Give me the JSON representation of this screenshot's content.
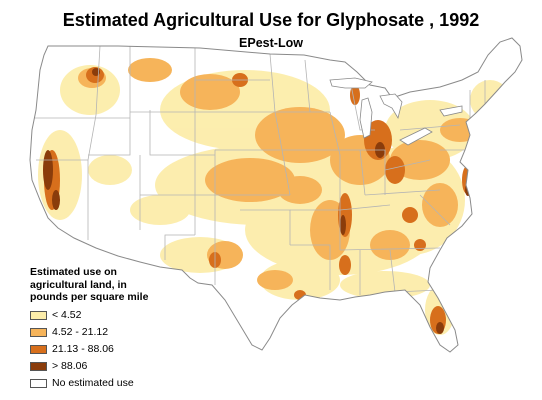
{
  "title": "Estimated Agricultural Use for Glyphosate , 1992",
  "subtitle": "EPest-Low",
  "legend": {
    "title_lines": [
      "Estimated use on",
      "agricultural land, in",
      "pounds per square mile"
    ],
    "items": [
      {
        "label": "< 4.52",
        "color": "#fcedaa"
      },
      {
        "label": "4.52 - 21.12",
        "color": "#f6b45a"
      },
      {
        "label": "21.13 - 88.06",
        "color": "#d76f1c"
      },
      {
        "label": "> 88.06",
        "color": "#8a3c0b"
      },
      {
        "label": "No estimated use",
        "color": "#ffffff"
      }
    ]
  },
  "colors": {
    "outline": "#8a8a8a",
    "state_border": "#b4b4b4",
    "low": "#fcedaa",
    "medium": "#f6b45a",
    "high": "#d76f1c",
    "very_high": "#8a3c0b"
  }
}
